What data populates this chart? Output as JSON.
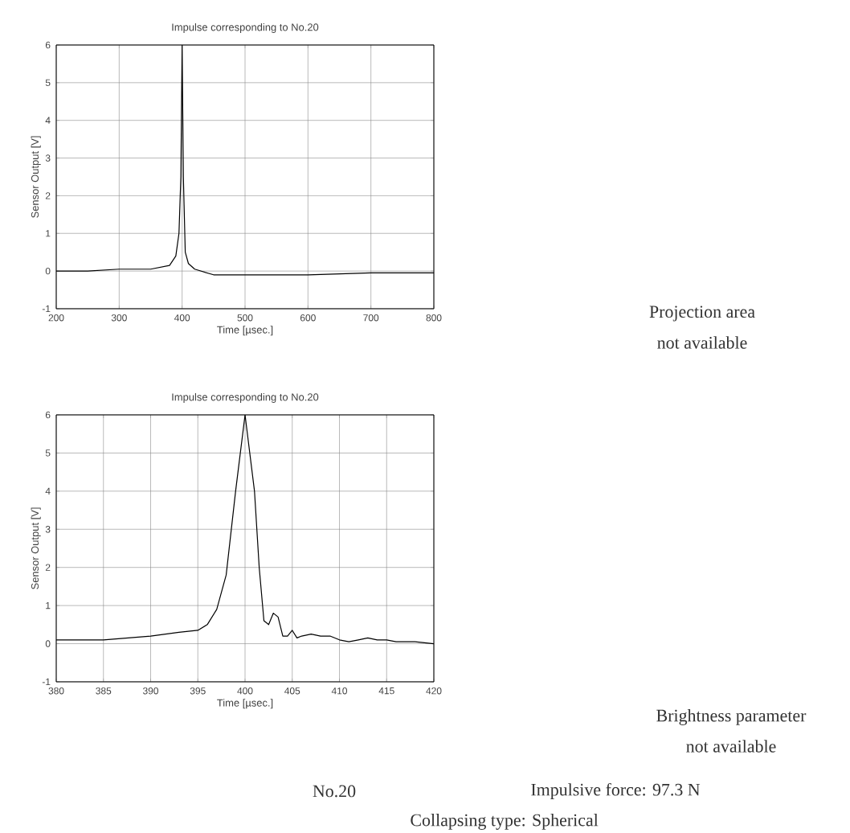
{
  "chart_data": [
    {
      "type": "line",
      "title": "Impulse corresponding to No.20",
      "xlabel": "Time [µsec.]",
      "ylabel": "Sensor Output [V]",
      "xlim": [
        200,
        800
      ],
      "ylim": [
        -1,
        6
      ],
      "xticks": [
        200,
        300,
        400,
        500,
        600,
        700,
        800
      ],
      "yticks": [
        -1,
        0,
        1,
        2,
        3,
        4,
        5,
        6
      ],
      "grid": true,
      "series": [
        {
          "color": "#000000",
          "x": [
            200,
            250,
            300,
            350,
            380,
            390,
            395,
            398,
            400,
            402,
            405,
            410,
            420,
            450,
            500,
            600,
            700,
            800
          ],
          "values": [
            0,
            0,
            0.05,
            0.05,
            0.15,
            0.4,
            1,
            2.5,
            6,
            2.5,
            0.5,
            0.2,
            0.05,
            -0.1,
            -0.1,
            -0.1,
            -0.05,
            -0.05
          ]
        }
      ]
    },
    {
      "type": "line",
      "title": "Impulse corresponding to No.20",
      "xlabel": "Time [µsec.]",
      "ylabel": "Sensor Output [V]",
      "xlim": [
        380,
        420
      ],
      "ylim": [
        -1,
        6
      ],
      "xticks": [
        380,
        385,
        390,
        395,
        400,
        405,
        410,
        415,
        420
      ],
      "yticks": [
        -1,
        0,
        1,
        2,
        3,
        4,
        5,
        6
      ],
      "grid": true,
      "series": [
        {
          "color": "#000000",
          "x": [
            380,
            385,
            390,
            393,
            395,
            396,
            397,
            398,
            399,
            400,
            401,
            401.5,
            402,
            402.5,
            403,
            403.5,
            404,
            404.5,
            405,
            405.5,
            406,
            407,
            408,
            409,
            410,
            411,
            412,
            413,
            414,
            415,
            416,
            417,
            418,
            420
          ],
          "values": [
            0.1,
            0.1,
            0.2,
            0.3,
            0.35,
            0.5,
            0.9,
            1.8,
            4,
            6,
            4,
            2,
            0.6,
            0.5,
            0.8,
            0.7,
            0.2,
            0.2,
            0.35,
            0.15,
            0.2,
            0.25,
            0.2,
            0.2,
            0.1,
            0.05,
            0.1,
            0.15,
            0.1,
            0.1,
            0.05,
            0.05,
            0.05,
            0
          ]
        }
      ]
    },
    {
      "type": "other",
      "annotations": [
        "Projection area",
        "not available",
        "Brightness parameter",
        "not available",
        "No.20",
        "Impulsive force: 97.3 N",
        "Collapsing type: Spherical"
      ]
    }
  ]
}
